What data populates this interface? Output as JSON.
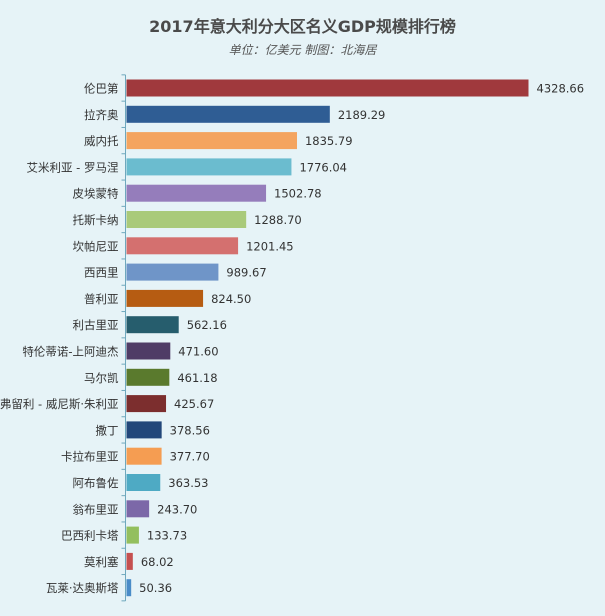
{
  "chart_data": {
    "type": "bar",
    "orientation": "horizontal",
    "title": "2017年意大利分大区名义GDP规模排行榜",
    "subtitle": "单位：亿美元  制图：北海居",
    "categories": [
      "伦巴第",
      "拉齐奥",
      "威内托",
      "艾米利亚 - 罗马涅",
      "皮埃蒙特",
      "托斯卡纳",
      "坎帕尼亚",
      "西西里",
      "普利亚",
      "利古里亚",
      "特伦蒂诺-上阿迪杰",
      "马尔凯",
      "弗留利 - 威尼斯·朱利亚",
      "撒丁",
      "卡拉布里亚",
      "阿布鲁佐",
      "翁布里亚",
      "巴西利卡塔",
      "莫利塞",
      "瓦莱·达奥斯塔"
    ],
    "values": [
      4328.66,
      2189.29,
      1835.79,
      1776.04,
      1502.78,
      1288.7,
      1201.45,
      989.67,
      824.5,
      562.16,
      471.6,
      461.18,
      425.67,
      378.56,
      377.7,
      363.53,
      243.7,
      133.73,
      68.02,
      50.36
    ],
    "value_labels": [
      "4328.66",
      "2189.29",
      "1835.79",
      "1776.04",
      "1502.78",
      "1288.70",
      "1201.45",
      "989.67",
      "824.50",
      "562.16",
      "471.60",
      "461.18",
      "425.67",
      "378.56",
      "377.70",
      "363.53",
      "243.70",
      "133.73",
      "68.02",
      "50.36"
    ],
    "colors": [
      "#a0393d",
      "#2f5d94",
      "#f4a45f",
      "#6bbccf",
      "#957dbb",
      "#a9ca7a",
      "#d4706f",
      "#6f95c8",
      "#b65c12",
      "#265d6d",
      "#4f3c66",
      "#5a7a2d",
      "#7c2e2e",
      "#22477a",
      "#f59d52",
      "#4eaac4",
      "#7c68a8",
      "#93bf5e",
      "#c55050",
      "#4a8cc8"
    ],
    "xlim": [
      0,
      4328.66
    ],
    "grid": false,
    "legend": "none"
  }
}
